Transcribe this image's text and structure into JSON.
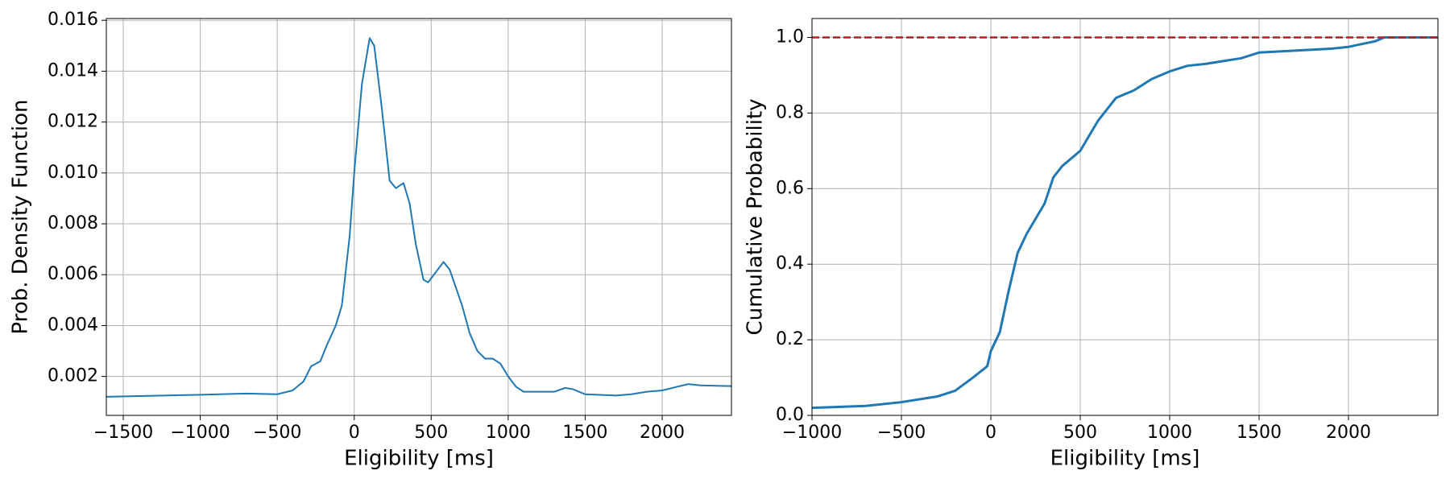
{
  "chart_data": [
    {
      "type": "line",
      "xlabel": "Eligibility [ms]",
      "ylabel": "Prob. Density Function",
      "xlim": [
        -1610,
        2450
      ],
      "ylim": [
        0.00047,
        0.01607
      ],
      "grid": true,
      "xticks": [
        {
          "value": -1500,
          "label": "−1500"
        },
        {
          "value": -1000,
          "label": "−1000"
        },
        {
          "value": -500,
          "label": "−500"
        },
        0,
        500,
        1000,
        1500,
        2000
      ],
      "yticks": [
        0.002,
        0.004,
        0.006,
        0.008,
        {
          "value": 0.01,
          "label": "0.010"
        },
        0.012,
        0.014,
        0.016
      ],
      "series": [
        {
          "color": "#1f77b4",
          "x": [
            -1610,
            -1000,
            -700,
            -500,
            -400,
            -330,
            -280,
            -220,
            -180,
            -120,
            -80,
            -30,
            0,
            50,
            100,
            130,
            180,
            230,
            270,
            320,
            360,
            400,
            450,
            480,
            530,
            580,
            620,
            700,
            750,
            800,
            850,
            900,
            950,
            1000,
            1050,
            1100,
            1200,
            1300,
            1370,
            1420,
            1500,
            1700,
            1800,
            1900,
            2000,
            2100,
            2170,
            2250,
            2450
          ],
          "values": [
            0.0012,
            0.00128,
            0.00133,
            0.0013,
            0.00145,
            0.0018,
            0.0024,
            0.0026,
            0.0032,
            0.004,
            0.0048,
            0.0075,
            0.01,
            0.0135,
            0.0153,
            0.015,
            0.0125,
            0.0097,
            0.0094,
            0.0096,
            0.0088,
            0.0072,
            0.0058,
            0.0057,
            0.0061,
            0.0065,
            0.0062,
            0.0048,
            0.0037,
            0.003,
            0.0027,
            0.0027,
            0.0025,
            0.002,
            0.0016,
            0.0014,
            0.0014,
            0.0014,
            0.00155,
            0.0015,
            0.0013,
            0.00125,
            0.0013,
            0.0014,
            0.00145,
            0.0016,
            0.0017,
            0.00165,
            0.00162
          ]
        }
      ]
    },
    {
      "type": "line",
      "xlabel": "Eligibility [ms]",
      "ylabel": "Cumulative Probability",
      "xlim": [
        -1000,
        2500
      ],
      "ylim": [
        0,
        1.05
      ],
      "grid": true,
      "xticks": [
        {
          "value": -1000,
          "label": "−1000"
        },
        {
          "value": -500,
          "label": "−500"
        },
        0,
        500,
        1000,
        1500,
        2000
      ],
      "yticks": [
        {
          "value": 0,
          "label": "0.0"
        },
        0.2,
        0.4,
        0.6,
        0.8,
        {
          "value": 1,
          "label": "1.0"
        }
      ],
      "hline": {
        "value": 1,
        "color": "#b22222"
      },
      "series": [
        {
          "color": "#1f77b4",
          "x": [
            -1000,
            -700,
            -500,
            -300,
            -200,
            -100,
            -20,
            0,
            50,
            100,
            150,
            200,
            250,
            300,
            350,
            400,
            500,
            600,
            700,
            800,
            900,
            1000,
            1100,
            1200,
            1400,
            1500,
            1700,
            1900,
            2000,
            2150,
            2200,
            2500
          ],
          "values": [
            0.02,
            0.025,
            0.035,
            0.05,
            0.065,
            0.1,
            0.13,
            0.17,
            0.22,
            0.33,
            0.43,
            0.48,
            0.52,
            0.56,
            0.63,
            0.66,
            0.7,
            0.78,
            0.84,
            0.86,
            0.89,
            0.91,
            0.925,
            0.93,
            0.945,
            0.96,
            0.965,
            0.97,
            0.975,
            0.99,
            1,
            1
          ]
        }
      ]
    }
  ]
}
